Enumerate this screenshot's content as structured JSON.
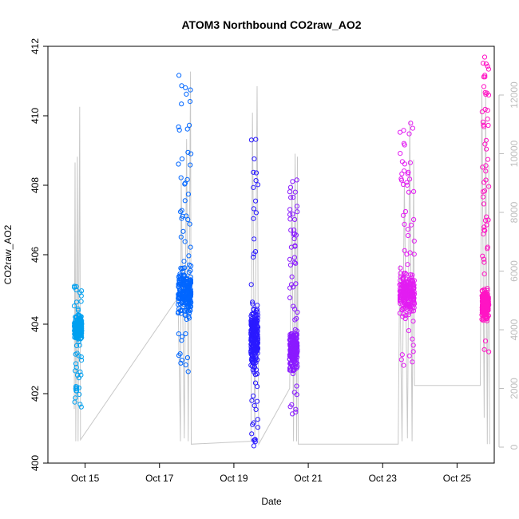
{
  "chart_data": {
    "type": "scatter",
    "title": "ATOM3 Northbound CO2raw_AO2",
    "xlabel": "Date",
    "ylabel": "CO2raw_AO2",
    "x_unit": "days",
    "xlim": [
      "2023-10-14T00:00",
      "2023-10-26T00:00"
    ],
    "x_ticks": [
      {
        "date": "2023-10-15",
        "label": "Oct 15"
      },
      {
        "date": "2023-10-17",
        "label": "Oct 17"
      },
      {
        "date": "2023-10-19",
        "label": "Oct 19"
      },
      {
        "date": "2023-10-21",
        "label": "Oct 21"
      },
      {
        "date": "2023-10-23",
        "label": "Oct 23"
      },
      {
        "date": "2023-10-25",
        "label": "Oct 25"
      }
    ],
    "ylim": [
      400,
      412
    ],
    "y_ticks": [
      400,
      402,
      404,
      406,
      408,
      410,
      412
    ],
    "y2lim": [
      0,
      12500
    ],
    "y2_ticks": [
      0,
      2000,
      4000,
      6000,
      8000,
      10000,
      12000
    ],
    "grid": false,
    "legend": "none",
    "point_style": "open-circle",
    "clusters": [
      {
        "start": "2023-10-14T17:00",
        "end": "2023-10-14T21:50",
        "color": "#00a0f0",
        "y_min": 401.5,
        "y_max": 405.1,
        "y_mid": 403.9
      },
      {
        "start": "2023-10-17T12:00",
        "end": "2023-10-17T20:20",
        "color": "#0066ff",
        "y_min": 402.6,
        "y_max": 411.2,
        "y_mid": 404.9
      },
      {
        "start": "2023-10-19T11:00",
        "end": "2023-10-19T15:30",
        "color": "#2a1aff",
        "y_min": 400.2,
        "y_max": 409.9,
        "y_mid": 403.6
      },
      {
        "start": "2023-10-20T12:00",
        "end": "2023-10-20T17:00",
        "color": "#8a1aff",
        "y_min": 401.3,
        "y_max": 408.4,
        "y_mid": 403.3
      },
      {
        "start": "2023-10-23T11:00",
        "end": "2023-10-23T20:30",
        "color": "#e21df2",
        "y_min": 402.8,
        "y_max": 409.8,
        "y_mid": 404.9
      },
      {
        "start": "2023-10-25T16:00",
        "end": "2023-10-25T20:30",
        "color": "#ff15c4",
        "y_min": 403.2,
        "y_max": 411.7,
        "y_mid": 404.6
      }
    ],
    "secondary_series": {
      "color": "#c8c8c8",
      "type": "line",
      "points": [
        {
          "x": "2023-10-14T17:00",
          "y": 1300
        },
        {
          "x": "2023-10-14T17:30",
          "y": 9700
        },
        {
          "x": "2023-10-14T18:00",
          "y": 200
        },
        {
          "x": "2023-10-14T19:00",
          "y": 9900
        },
        {
          "x": "2023-10-14T19:30",
          "y": 200
        },
        {
          "x": "2023-10-14T20:30",
          "y": 11600
        },
        {
          "x": "2023-10-14T21:00",
          "y": 250
        },
        {
          "x": "2023-10-17T12:00",
          "y": 5100
        },
        {
          "x": "2023-10-17T13:30",
          "y": 200
        },
        {
          "x": "2023-10-17T14:00",
          "y": 9200
        },
        {
          "x": "2023-10-17T16:00",
          "y": 300
        },
        {
          "x": "2023-10-17T17:30",
          "y": 10500
        },
        {
          "x": "2023-10-17T18:30",
          "y": 200
        },
        {
          "x": "2023-10-17T20:00",
          "y": 12800
        },
        {
          "x": "2023-10-17T20:30",
          "y": 100
        },
        {
          "x": "2023-10-19T11:00",
          "y": 200
        },
        {
          "x": "2023-10-19T12:00",
          "y": 11400
        },
        {
          "x": "2023-10-19T13:30",
          "y": 300
        },
        {
          "x": "2023-10-19T15:00",
          "y": 12300
        },
        {
          "x": "2023-10-19T16:00",
          "y": 100
        },
        {
          "x": "2023-10-20T12:00",
          "y": 2000
        },
        {
          "x": "2023-10-20T13:30",
          "y": 9000
        },
        {
          "x": "2023-10-20T14:30",
          "y": 200
        },
        {
          "x": "2023-10-20T15:30",
          "y": 10000
        },
        {
          "x": "2023-10-20T16:30",
          "y": 200
        },
        {
          "x": "2023-10-20T17:00",
          "y": 9900
        },
        {
          "x": "2023-10-20T17:30",
          "y": 100
        },
        {
          "x": "2023-10-23T10:00",
          "y": 100
        },
        {
          "x": "2023-10-23T11:00",
          "y": 6200
        },
        {
          "x": "2023-10-23T12:30",
          "y": 200
        },
        {
          "x": "2023-10-23T14:00",
          "y": 9000
        },
        {
          "x": "2023-10-23T16:00",
          "y": 300
        },
        {
          "x": "2023-10-23T17:30",
          "y": 11100
        },
        {
          "x": "2023-10-23T19:00",
          "y": 200
        },
        {
          "x": "2023-10-23T20:00",
          "y": 9800
        },
        {
          "x": "2023-10-23T20:30",
          "y": 2100
        },
        {
          "x": "2023-10-25T15:00",
          "y": 2100
        },
        {
          "x": "2023-10-25T16:00",
          "y": 12200
        },
        {
          "x": "2023-10-25T17:30",
          "y": 1000
        },
        {
          "x": "2023-10-25T18:30",
          "y": 12000
        },
        {
          "x": "2023-10-25T19:30",
          "y": 100
        },
        {
          "x": "2023-10-25T20:30",
          "y": 9600
        },
        {
          "x": "2023-10-25T21:00",
          "y": 100
        }
      ]
    }
  }
}
